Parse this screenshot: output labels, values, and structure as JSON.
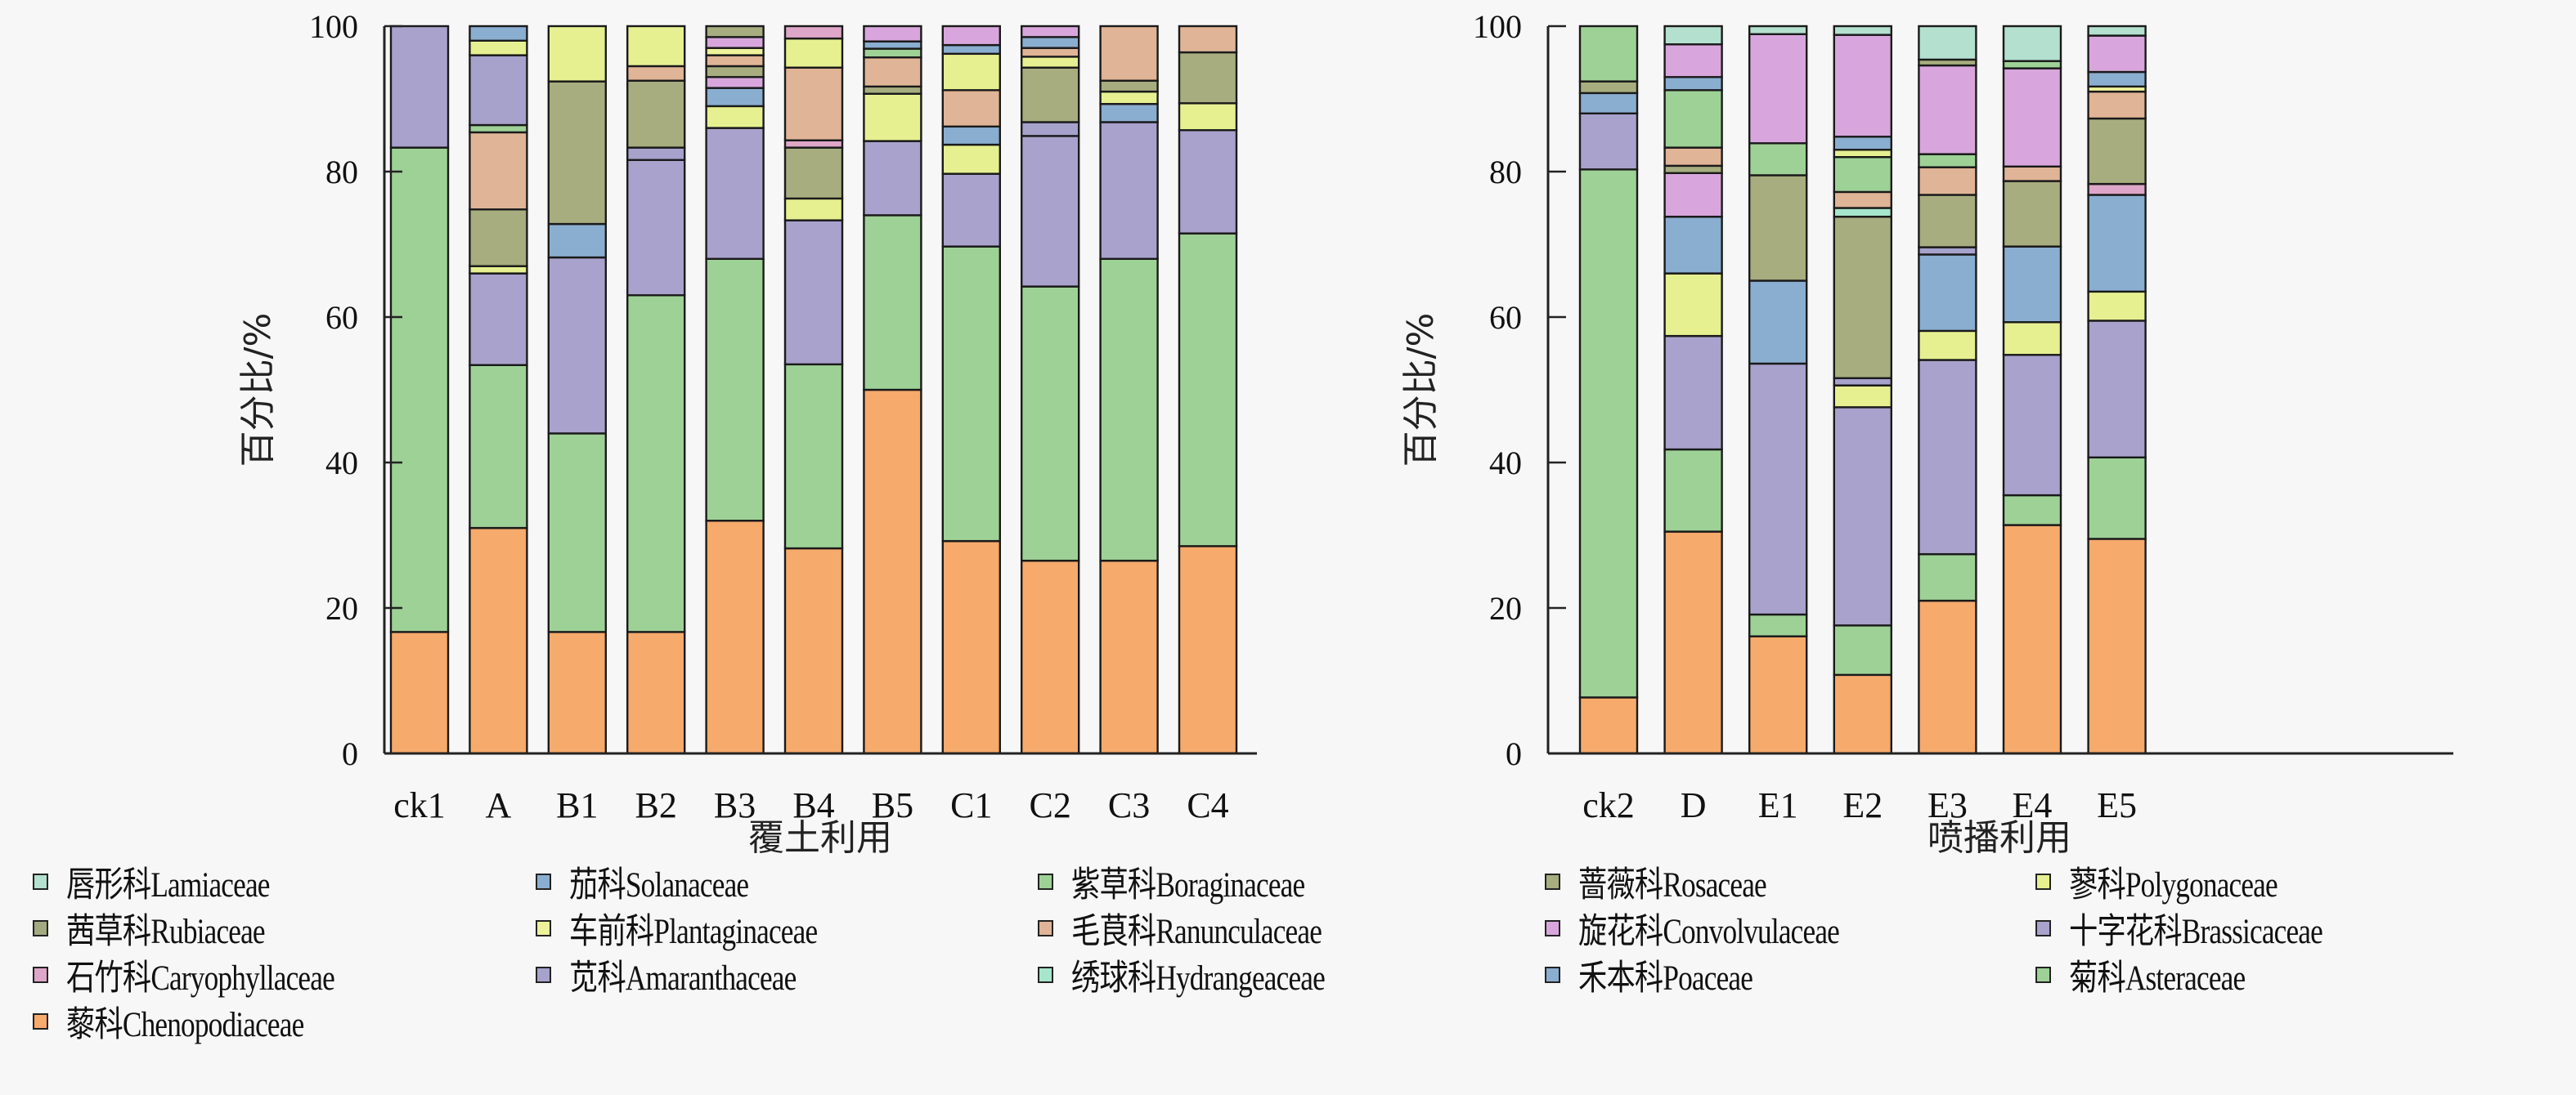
{
  "colors": {
    "Lamiaceae": "#b3e0cf",
    "Solanaceae": "#8aaed0",
    "Boraginaceae": "#9ed196",
    "Rosaceae": "#a7ad7e",
    "Polygonaceae": "#e6f091",
    "Rubiaceae": "#a3aa80",
    "Plantaginaceae": "#eef29a",
    "Ranunculaceae": "#e0b496",
    "Convolvulaceae": "#d8a6dc",
    "Brassicaceae": "#a8a2cc",
    "Caryophyllaceae": "#dea6c8",
    "Amaranthaceae": "#a6a2cc",
    "Hydrangeaceae": "#a6e6cc",
    "Poaceae": "#8aaed0",
    "Asteraceae": "#9ed196",
    "Chenopodiaceae": "#f6aa6c"
  },
  "legend": [
    {
      "key": "Lamiaceae",
      "label": "唇形科Lamiaceae"
    },
    {
      "key": "Solanaceae",
      "label": "茄科Solanaceae"
    },
    {
      "key": "Boraginaceae",
      "label": "紫草科Boraginaceae"
    },
    {
      "key": "Rosaceae",
      "label": "蔷薇科Rosaceae"
    },
    {
      "key": "Polygonaceae",
      "label": "蓼科Polygonaceae"
    },
    {
      "key": "Rubiaceae",
      "label": "茜草科Rubiaceae"
    },
    {
      "key": "Plantaginaceae",
      "label": "车前科Plantaginaceae"
    },
    {
      "key": "Ranunculaceae",
      "label": "毛茛科Ranunculaceae"
    },
    {
      "key": "Convolvulaceae",
      "label": "旋花科Convolvulaceae"
    },
    {
      "key": "Brassicaceae",
      "label": "十字花科Brassicaceae"
    },
    {
      "key": "Caryophyllaceae",
      "label": "石竹科Caryophyllaceae"
    },
    {
      "key": "Amaranthaceae",
      "label": "苋科Amaranthaceae"
    },
    {
      "key": "Hydrangeaceae",
      "label": "绣球科Hydrangeaceae"
    },
    {
      "key": "Poaceae",
      "label": "禾本科Poaceae"
    },
    {
      "key": "Asteraceae",
      "label": "菊科Asteraceae"
    },
    {
      "key": "Chenopodiaceae",
      "label": "藜科Chenopodiaceae"
    }
  ],
  "chart_data": [
    {
      "type": "bar",
      "stacked": true,
      "title": "",
      "xlabel": "覆土利用",
      "ylabel": "百分比/%",
      "ylim": [
        0,
        100
      ],
      "yticks": [
        "0",
        "20",
        "40",
        "60",
        "80",
        "100"
      ],
      "grid": false,
      "legend_position": "bottom",
      "categories": [
        "ck1",
        "A",
        "B1",
        "B2",
        "B3",
        "B4",
        "B5",
        "C1",
        "C2",
        "C3",
        "C4"
      ],
      "stacks": [
        [
          [
            "Chenopodiaceae",
            16.7
          ],
          [
            "Asteraceae",
            66.6
          ],
          [
            "Brassicaceae",
            16.7
          ]
        ],
        [
          [
            "Chenopodiaceae",
            31
          ],
          [
            "Asteraceae",
            22.4
          ],
          [
            "Brassicaceae",
            12.6
          ],
          [
            "Polygonaceae",
            1
          ],
          [
            "Rosaceae",
            7.8
          ],
          [
            "Ranunculaceae",
            10.6
          ],
          [
            "Boraginaceae",
            1
          ],
          [
            "Amaranthaceae",
            9.6
          ],
          [
            "Polygonaceae",
            2
          ],
          [
            "Solanaceae",
            2
          ]
        ],
        [
          [
            "Chenopodiaceae",
            16.7
          ],
          [
            "Asteraceae",
            27.3
          ],
          [
            "Brassicaceae",
            24.2
          ],
          [
            "Poaceae",
            4.6
          ],
          [
            "Rosaceae",
            19.6
          ],
          [
            "Polygonaceae",
            7.6
          ]
        ],
        [
          [
            "Chenopodiaceae",
            16.7
          ],
          [
            "Asteraceae",
            46.3
          ],
          [
            "Brassicaceae",
            18.6
          ],
          [
            "Amaranthaceae",
            1.7
          ],
          [
            "Rosaceae",
            9.2
          ],
          [
            "Ranunculaceae",
            2
          ],
          [
            "Polygonaceae",
            5.5
          ]
        ],
        [
          [
            "Chenopodiaceae",
            32
          ],
          [
            "Asteraceae",
            36
          ],
          [
            "Brassicaceae",
            18
          ],
          [
            "Polygonaceae",
            3
          ],
          [
            "Poaceae",
            2.5
          ],
          [
            "Convolvulaceae",
            1.5
          ],
          [
            "Rosaceae",
            1.5
          ],
          [
            "Ranunculaceae",
            1.5
          ],
          [
            "Plantaginaceae",
            1
          ],
          [
            "Convolvulaceae",
            1.5
          ],
          [
            "Rosaceae",
            1.5
          ]
        ],
        [
          [
            "Chenopodiaceae",
            28.2
          ],
          [
            "Asteraceae",
            25.3
          ],
          [
            "Brassicaceae",
            19.8
          ],
          [
            "Polygonaceae",
            3
          ],
          [
            "Rosaceae",
            7
          ],
          [
            "Caryophyllaceae",
            1
          ],
          [
            "Ranunculaceae",
            10
          ],
          [
            "Polygonaceae",
            4
          ],
          [
            "Caryophyllaceae",
            1.7
          ]
        ],
        [
          [
            "Chenopodiaceae",
            50
          ],
          [
            "Asteraceae",
            24
          ],
          [
            "Brassicaceae",
            10.2
          ],
          [
            "Polygonaceae",
            6.5
          ],
          [
            "Rosaceae",
            1
          ],
          [
            "Ranunculaceae",
            4
          ],
          [
            "Boraginaceae",
            1.2
          ],
          [
            "Poaceae",
            1
          ],
          [
            "Convolvulaceae",
            2.1
          ]
        ],
        [
          [
            "Chenopodiaceae",
            29.2
          ],
          [
            "Asteraceae",
            40.5
          ],
          [
            "Brassicaceae",
            10
          ],
          [
            "Polygonaceae",
            4
          ],
          [
            "Poaceae",
            2.5
          ],
          [
            "Ranunculaceae",
            5
          ],
          [
            "Polygonaceae",
            5
          ],
          [
            "Poaceae",
            1.2
          ],
          [
            "Convolvulaceae",
            2.6
          ]
        ],
        [
          [
            "Chenopodiaceae",
            26.5
          ],
          [
            "Asteraceae",
            37.7
          ],
          [
            "Brassicaceae",
            20.7
          ],
          [
            "Amaranthaceae",
            1.9
          ],
          [
            "Rosaceae",
            7.5
          ],
          [
            "Polygonaceae",
            1.5
          ],
          [
            "Ranunculaceae",
            1.2
          ],
          [
            "Poaceae",
            1.5
          ],
          [
            "Convolvulaceae",
            1.5
          ]
        ],
        [
          [
            "Chenopodiaceae",
            26.5
          ],
          [
            "Asteraceae",
            41.5
          ],
          [
            "Brassicaceae",
            18.8
          ],
          [
            "Poaceae",
            2.5
          ],
          [
            "Polygonaceae",
            1.7
          ],
          [
            "Rosaceae",
            1.5
          ],
          [
            "Ranunculaceae",
            7.5
          ]
        ],
        [
          [
            "Chenopodiaceae",
            28.5
          ],
          [
            "Asteraceae",
            43
          ],
          [
            "Brassicaceae",
            14.2
          ],
          [
            "Polygonaceae",
            3.7
          ],
          [
            "Rosaceae",
            7
          ],
          [
            "Ranunculaceae",
            3.6
          ]
        ]
      ]
    },
    {
      "type": "bar",
      "stacked": true,
      "title": "",
      "xlabel": "喷播利用",
      "ylabel": "百分比/%",
      "ylim": [
        0,
        100
      ],
      "yticks": [
        "0",
        "20",
        "40",
        "60",
        "80",
        "100"
      ],
      "grid": false,
      "legend_position": "bottom",
      "categories": [
        "ck2",
        "D",
        "E1",
        "E2",
        "E3",
        "E4",
        "E5"
      ],
      "stacks": [
        [
          [
            "Chenopodiaceae",
            7.7
          ],
          [
            "Asteraceae",
            72.6
          ],
          [
            "Brassicaceae",
            7.7
          ],
          [
            "Poaceae",
            2.8
          ],
          [
            "Rosaceae",
            1.6
          ],
          [
            "Boraginaceae",
            7.6
          ]
        ],
        [
          [
            "Chenopodiaceae",
            30.5
          ],
          [
            "Asteraceae",
            11.3
          ],
          [
            "Brassicaceae",
            15.6
          ],
          [
            "Polygonaceae",
            8.6
          ],
          [
            "Poaceae",
            7.8
          ],
          [
            "Convolvulaceae",
            6
          ],
          [
            "Rosaceae",
            1
          ],
          [
            "Ranunculaceae",
            2.5
          ],
          [
            "Boraginaceae",
            7.9
          ],
          [
            "Poaceae",
            1.8
          ],
          [
            "Convolvulaceae",
            4.5
          ],
          [
            "Lamiaceae",
            2.5
          ]
        ],
        [
          [
            "Chenopodiaceae",
            16.1
          ],
          [
            "Asteraceae",
            3
          ],
          [
            "Brassicaceae",
            34.5
          ],
          [
            "Poaceae",
            11.4
          ],
          [
            "Rosaceae",
            14.5
          ],
          [
            "Boraginaceae",
            4.4
          ],
          [
            "Convolvulaceae",
            15
          ],
          [
            "Lamiaceae",
            1.1
          ]
        ],
        [
          [
            "Chenopodiaceae",
            10.8
          ],
          [
            "Asteraceae",
            6.8
          ],
          [
            "Brassicaceae",
            30
          ],
          [
            "Polygonaceae",
            3
          ],
          [
            "Amaranthaceae",
            1
          ],
          [
            "Rosaceae",
            22.2
          ],
          [
            "Hydrangeaceae",
            1.2
          ],
          [
            "Ranunculaceae",
            2.2
          ],
          [
            "Boraginaceae",
            4.8
          ],
          [
            "Polygonaceae",
            1
          ],
          [
            "Poaceae",
            1.8
          ],
          [
            "Convolvulaceae",
            14
          ],
          [
            "Lamiaceae",
            1.2
          ]
        ],
        [
          [
            "Chenopodiaceae",
            21
          ],
          [
            "Asteraceae",
            6.4
          ],
          [
            "Brassicaceae",
            26.7
          ],
          [
            "Polygonaceae",
            4
          ],
          [
            "Poaceae",
            10.5
          ],
          [
            "Amaranthaceae",
            1
          ],
          [
            "Rosaceae",
            7.2
          ],
          [
            "Ranunculaceae",
            3.8
          ],
          [
            "Boraginaceae",
            1.8
          ],
          [
            "Convolvulaceae",
            12.2
          ],
          [
            "Rosaceae",
            0.8
          ],
          [
            "Lamiaceae",
            4.6
          ]
        ],
        [
          [
            "Chenopodiaceae",
            31.4
          ],
          [
            "Asteraceae",
            4.1
          ],
          [
            "Brassicaceae",
            19.3
          ],
          [
            "Polygonaceae",
            4.5
          ],
          [
            "Poaceae",
            10.4
          ],
          [
            "Rosaceae",
            9
          ],
          [
            "Ranunculaceae",
            2
          ],
          [
            "Convolvulaceae",
            13.5
          ],
          [
            "Boraginaceae",
            1
          ],
          [
            "Lamiaceae",
            4.8
          ]
        ],
        [
          [
            "Chenopodiaceae",
            29.5
          ],
          [
            "Asteraceae",
            11.2
          ],
          [
            "Brassicaceae",
            18.8
          ],
          [
            "Polygonaceae",
            4
          ],
          [
            "Poaceae",
            13.3
          ],
          [
            "Caryophyllaceae",
            1.5
          ],
          [
            "Rosaceae",
            9
          ],
          [
            "Ranunculaceae",
            3.7
          ],
          [
            "Plantaginaceae",
            0.7
          ],
          [
            "Poaceae",
            2
          ],
          [
            "Convolvulaceae",
            5
          ],
          [
            "Lamiaceae",
            1.3
          ]
        ]
      ]
    }
  ]
}
